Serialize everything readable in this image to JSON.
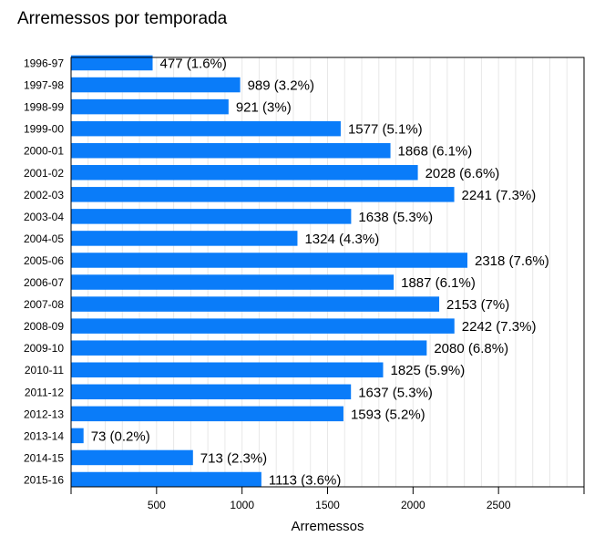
{
  "chart_data": {
    "type": "bar",
    "orientation": "horizontal",
    "title": "Arremessos por temporada",
    "xlabel": "Arremessos",
    "ylabel": "",
    "xlim": [
      0,
      3000
    ],
    "xticks": [
      500,
      1000,
      1500,
      2000,
      2500
    ],
    "grid": "vertical minor lines",
    "legend": "none",
    "bar_color": "#0a7cf9",
    "grid_color": "#e8e8e8",
    "categories": [
      "1996-97",
      "1997-98",
      "1998-99",
      "1999-00",
      "2000-01",
      "2001-02",
      "2002-03",
      "2003-04",
      "2004-05",
      "2005-06",
      "2006-07",
      "2007-08",
      "2008-09",
      "2009-10",
      "2010-11",
      "2011-12",
      "2012-13",
      "2013-14",
      "2014-15",
      "2015-16"
    ],
    "values": [
      477,
      989,
      921,
      1577,
      1868,
      2028,
      2241,
      1638,
      1324,
      2318,
      1887,
      2153,
      2242,
      2080,
      1825,
      1637,
      1593,
      73,
      713,
      1113
    ],
    "data_labels": [
      "477 (1.6%)",
      "989 (3.2%)",
      "921 (3%)",
      "1577 (5.1%)",
      "1868 (6.1%)",
      "2028 (6.6%)",
      "2241 (7.3%)",
      "1638 (5.3%)",
      "1324 (4.3%)",
      "2318 (7.6%)",
      "1887 (6.1%)",
      "2153 (7%)",
      "2242 (7.3%)",
      "2080 (6.8%)",
      "1825 (5.9%)",
      "1637 (5.3%)",
      "1593 (5.2%)",
      "73 (0.2%)",
      "713 (2.3%)",
      "1113 (3.6%)"
    ]
  }
}
